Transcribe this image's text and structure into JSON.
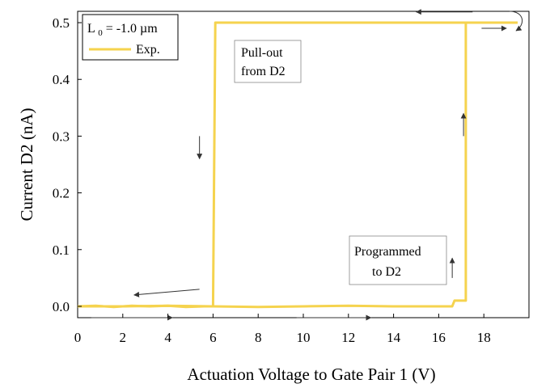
{
  "chart_data": {
    "type": "line",
    "xlabel": "Actuation Voltage to Gate Pair 1 (V)",
    "ylabel": "Current D2 (nA)",
    "xlim": [
      0,
      20
    ],
    "ylim": [
      -0.02,
      0.52
    ],
    "xticks": [
      0,
      2,
      4,
      6,
      8,
      10,
      12,
      14,
      16,
      18
    ],
    "yticks": [
      0.0,
      0.1,
      0.2,
      0.3,
      0.4,
      0.5
    ],
    "xtick_labels": [
      "0",
      "2",
      "4",
      "6",
      "8",
      "10",
      "12",
      "14",
      "16",
      "18"
    ],
    "ytick_labels": [
      "0.0",
      "0.1",
      "0.2",
      "0.3",
      "0.4",
      "0.5"
    ],
    "grid": false,
    "legend": {
      "position": "top-left",
      "header_main": "L",
      "header_sub": "0",
      "header_rest": "= -1.0 µm",
      "entries": [
        "Exp."
      ]
    },
    "series": [
      {
        "name": "Exp.",
        "color": "#F5D34E",
        "x": [
          0.0,
          0.8,
          1.6,
          2.4,
          3.2,
          4.0,
          4.8,
          5.6,
          6.0,
          6.1,
          6.1,
          9.0,
          12.0,
          15.0,
          17.2,
          19.5
        ],
        "y": [
          0.0,
          0.001,
          -0.001,
          0.001,
          0.0,
          0.001,
          -0.001,
          0.0,
          0.0,
          0.5,
          0.5,
          0.5,
          0.5,
          0.5,
          0.5,
          0.5
        ]
      },
      {
        "name": "Exp.",
        "color": "#F5D34E",
        "x": [
          0.0,
          2.0,
          4.0,
          6.0,
          8.0,
          10.0,
          12.0,
          14.0,
          16.0,
          16.6,
          16.7,
          17.1,
          17.2,
          17.2
        ],
        "y": [
          0.0,
          0.0,
          0.001,
          0.0,
          -0.001,
          0.0,
          0.001,
          0.0,
          0.0,
          0.0,
          0.01,
          0.01,
          0.01,
          0.5
        ]
      }
    ],
    "annotations": [
      {
        "id": "pullout",
        "lines": [
          "Pull-out",
          "from D2"
        ]
      },
      {
        "id": "programmed",
        "lines": [
          "Programmed",
          "to D2"
        ]
      }
    ],
    "arrows": [
      {
        "id": "arrow-top-left-direction",
        "from": [
          17.5,
          0.519
        ],
        "to": [
          15.0,
          0.519
        ]
      },
      {
        "id": "arrow-down-left",
        "from": [
          5.4,
          0.3
        ],
        "to": [
          5.4,
          0.26
        ]
      },
      {
        "id": "arrow-bottom-left",
        "from": [
          5.4,
          0.03
        ],
        "to": [
          2.5,
          0.02
        ]
      },
      {
        "id": "arrow-bottom-right-1",
        "from": [
          0.6,
          -0.02
        ],
        "to": [
          4.2,
          -0.02
        ]
      },
      {
        "id": "arrow-bottom-right-2",
        "from": [
          9.7,
          -0.02
        ],
        "to": [
          13.0,
          -0.02
        ]
      },
      {
        "id": "arrow-up-1",
        "from": [
          17.1,
          0.3
        ],
        "to": [
          17.1,
          0.34
        ]
      },
      {
        "id": "arrow-up-2",
        "from": [
          16.6,
          0.05
        ],
        "to": [
          16.6,
          0.085
        ]
      },
      {
        "id": "arrow-top-right",
        "from": [
          17.9,
          0.49
        ],
        "to": [
          19.0,
          0.49
        ]
      }
    ]
  }
}
